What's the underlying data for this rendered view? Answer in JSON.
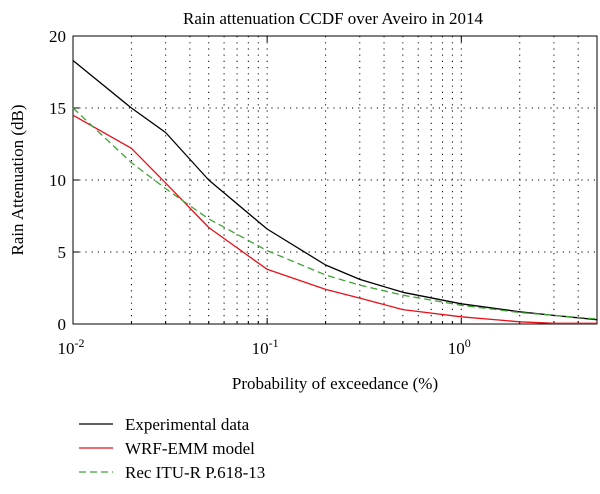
{
  "chart_data": {
    "type": "line",
    "title": "Rain attenuation CCDF over Aveiro in 2014",
    "xlabel": "Probability of exceedance (%)",
    "ylabel": "Rain Attenuation (dB)",
    "x_scale": "log",
    "xlim": [
      0.01,
      5
    ],
    "ylim": [
      0,
      20
    ],
    "x_ticks": [
      {
        "value": 0.01,
        "base": "10",
        "exp": "-2"
      },
      {
        "value": 0.1,
        "base": "10",
        "exp": "-1"
      },
      {
        "value": 1,
        "base": "10",
        "exp": "0"
      }
    ],
    "y_ticks": [
      0,
      5,
      10,
      15,
      20
    ],
    "grid": true,
    "legend_position": "below",
    "series": [
      {
        "name": "Experimental data",
        "color": "#000000",
        "dash": "solid",
        "x": [
          0.01,
          0.02,
          0.03,
          0.05,
          0.1,
          0.2,
          0.3,
          0.5,
          1,
          2,
          3,
          5
        ],
        "y": [
          18.3,
          15.0,
          13.3,
          10.0,
          6.6,
          4.1,
          3.1,
          2.2,
          1.4,
          0.85,
          0.6,
          0.3
        ]
      },
      {
        "name": "WRF-EMM model",
        "color": "#e8101a",
        "dash": "solid",
        "x": [
          0.01,
          0.02,
          0.03,
          0.05,
          0.1,
          0.2,
          0.3,
          0.5,
          1,
          2,
          3,
          5
        ],
        "y": [
          14.5,
          12.2,
          9.8,
          6.7,
          3.8,
          2.4,
          1.8,
          1.0,
          0.5,
          0.15,
          0.05,
          0.05
        ]
      },
      {
        "name": "Rec ITU-R P.618-13",
        "color": "#3fa535",
        "dash": "dashed",
        "x": [
          0.01,
          0.02,
          0.03,
          0.05,
          0.1,
          0.2,
          0.3,
          0.5,
          1,
          2,
          3,
          5
        ],
        "y": [
          15.0,
          11.2,
          9.4,
          7.3,
          5.1,
          3.4,
          2.7,
          2.0,
          1.3,
          0.8,
          0.6,
          0.35
        ]
      }
    ]
  }
}
